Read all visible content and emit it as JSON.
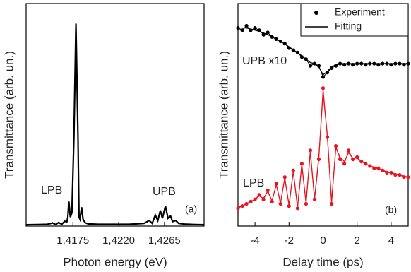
{
  "chart_data": [
    {
      "type": "line",
      "x_label": "Photon energy (eV)",
      "y_label": "Transmittance (arb. un.)",
      "annotations": [
        "LPB",
        "UPB",
        "(a)"
      ],
      "x": [
        1.4129,
        1.414,
        1.415,
        1.4155,
        1.4158,
        1.4161,
        1.4164,
        1.4167,
        1.4169,
        1.417,
        1.4171,
        1.41725,
        1.4174,
        1.4176,
        1.4178,
        1.418,
        1.4181,
        1.4182,
        1.41835,
        1.4185,
        1.4187,
        1.419,
        1.42,
        1.423,
        1.4245,
        1.425,
        1.4253,
        1.4256,
        1.42585,
        1.4261,
        1.4263,
        1.4266,
        1.42685,
        1.4271,
        1.4273,
        1.4276,
        1.4279,
        1.4285,
        1.4295,
        1.4304
      ],
      "series": [
        {
          "color": "#000000",
          "marker": false,
          "values": [
            0.6,
            0.7,
            0.8,
            1.4,
            0.7,
            1.6,
            0.8,
            2.2,
            1.8,
            4,
            11,
            4,
            6,
            40,
            91,
            40,
            4,
            3,
            8.5,
            3,
            1.5,
            1.0,
            0.8,
            0.8,
            1.2,
            2.5,
            1.2,
            5,
            2.5,
            7,
            3.5,
            9,
            3.5,
            4.5,
            2,
            2.5,
            1.2,
            0.9,
            0.7,
            0.6
          ]
        }
      ],
      "xlim": [
        1.4129,
        1.4304
      ],
      "ylim": [
        0,
        100
      ],
      "xticks": [
        {
          "value": 1.4175,
          "label": "1,4175"
        },
        {
          "value": 1.422,
          "label": "1,4220"
        },
        {
          "value": 1.4265,
          "label": "1,4265"
        }
      ]
    },
    {
      "type": "line",
      "x_label": "Delay time (ps)",
      "y_label": "Transmittance (arb. un.)",
      "annotations": [
        "UPB x10",
        "LPB",
        "(b)"
      ],
      "x": [
        -5,
        -4.75,
        -4.5,
        -4.25,
        -4,
        -3.75,
        -3.5,
        -3.25,
        -3,
        -2.75,
        -2.5,
        -2.25,
        -2,
        -1.75,
        -1.5,
        -1.25,
        -1,
        -0.75,
        -0.5,
        -0.25,
        0,
        0.25,
        0.5,
        0.75,
        1,
        1.25,
        1.5,
        1.75,
        2,
        2.25,
        2.5,
        2.75,
        3,
        3.25,
        3.5,
        3.75,
        4,
        4.25,
        4.5,
        4.75,
        5
      ],
      "series": [
        {
          "name": "Experiment",
          "color": "#000000",
          "marker": true,
          "values": [
            89,
            88,
            90,
            88,
            89,
            88,
            86,
            87,
            85,
            84,
            83,
            82,
            80,
            79,
            78,
            76,
            75,
            72,
            73,
            72,
            67,
            69,
            71,
            72,
            73,
            72.5,
            73,
            72.5,
            73,
            73,
            72.5,
            73,
            73,
            72.5,
            73,
            73,
            72.5,
            73,
            73,
            72.5,
            73
          ]
        },
        {
          "name": "Fitting",
          "color": "#000000",
          "marker": false,
          "values": [
            89,
            89,
            89,
            88.5,
            88,
            87.5,
            86.8,
            86,
            85,
            84,
            83,
            82,
            80.5,
            79.2,
            78,
            76.5,
            75,
            73.5,
            73,
            71.5,
            68,
            69.5,
            71.5,
            72.5,
            73,
            73,
            73,
            73,
            73,
            73,
            73,
            73,
            73,
            73,
            73,
            73,
            73,
            73,
            73,
            73,
            73
          ]
        },
        {
          "color": "#e8141e",
          "marker": true,
          "values": [
            8,
            9,
            10,
            11,
            12,
            14,
            12,
            16,
            11,
            19,
            10,
            22,
            9,
            25,
            8,
            28,
            10,
            34,
            12,
            30,
            62,
            40,
            10,
            36,
            30,
            28,
            34,
            30,
            31,
            29,
            28,
            27,
            26,
            26,
            25,
            24,
            24,
            23,
            23,
            22,
            22
          ]
        },
        {
          "color": "#e8141e",
          "marker": false,
          "values": [
            8.5,
            9,
            10,
            11,
            12,
            13.5,
            12.5,
            15.5,
            11.5,
            18.5,
            10.5,
            21.5,
            9.5,
            24.5,
            8.5,
            27.5,
            10.5,
            33,
            12.5,
            31,
            60,
            41,
            11,
            35,
            31,
            29,
            33,
            30.5,
            30.5,
            29,
            28,
            27,
            26.5,
            26,
            25,
            24.5,
            24,
            23.5,
            23,
            22.5,
            22
          ]
        }
      ],
      "xlim": [
        -5,
        5
      ],
      "ylim": [
        0,
        100
      ],
      "xticks": [
        -4,
        -2,
        0,
        2,
        4
      ],
      "legend": "upper right"
    }
  ]
}
